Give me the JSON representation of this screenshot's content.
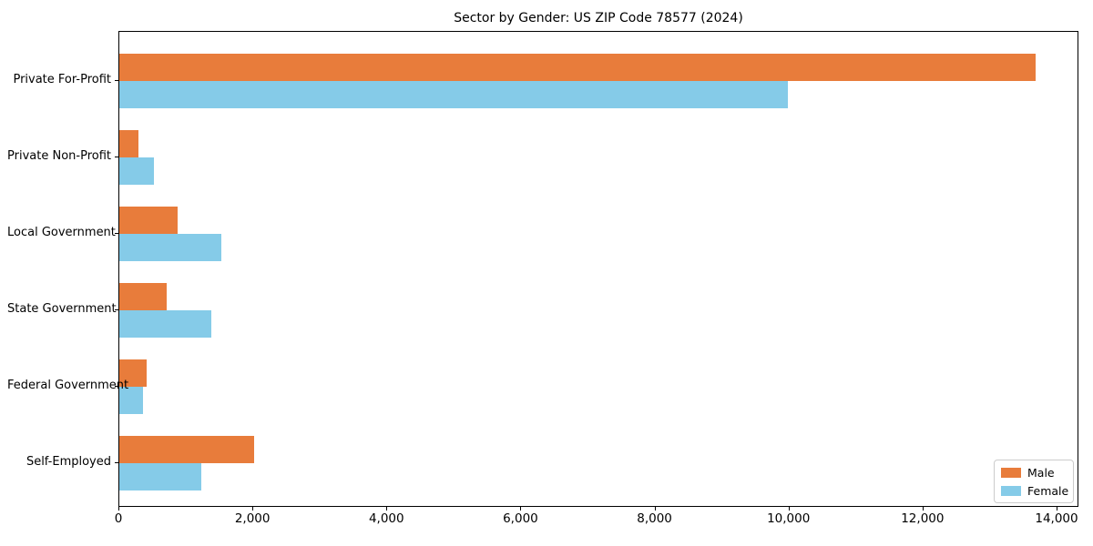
{
  "figure": {
    "title": "Sector by Gender: US ZIP Code 78577 (2024)"
  },
  "chart_data": {
    "type": "bar",
    "orientation": "horizontal",
    "title": "Sector by Gender: US ZIP Code 78577 (2024)",
    "categories": [
      "Private For-Profit",
      "Private Non-Profit",
      "Local Government",
      "State Government",
      "Federal Government",
      "Self-Employed"
    ],
    "series": [
      {
        "name": "Male",
        "color": "#e87c3b",
        "values": [
          13670,
          290,
          870,
          700,
          410,
          2010
        ]
      },
      {
        "name": "Female",
        "color": "#85cbe8",
        "values": [
          9970,
          520,
          1520,
          1370,
          350,
          1220
        ]
      }
    ],
    "xlabel": "",
    "ylabel": "",
    "xlim": [
      0,
      14326
    ],
    "x_ticks": [
      0,
      2000,
      4000,
      6000,
      8000,
      10000,
      12000,
      14000
    ],
    "x_tick_labels": [
      "0",
      "2,000",
      "4,000",
      "6,000",
      "8,000",
      "10,000",
      "12,000",
      "14,000"
    ],
    "grid": false,
    "legend": {
      "position": "lower right",
      "entries": [
        "Male",
        "Female"
      ]
    }
  }
}
